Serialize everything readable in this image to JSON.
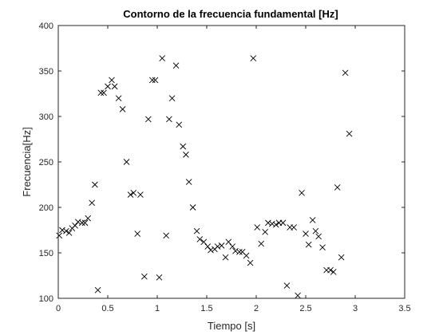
{
  "chart_data": {
    "type": "scatter",
    "title": "Contorno de la frecuencia fundamental [Hz]",
    "xlabel": "Tiempo [s]",
    "ylabel": "Frecuencia[Hz]",
    "xlim": [
      0,
      3.5
    ],
    "ylim": [
      100,
      400
    ],
    "xticks": [
      "0",
      "0.5",
      "1",
      "1.5",
      "2",
      "2.5",
      "3",
      "3.5"
    ],
    "yticks": [
      "100",
      "150",
      "200",
      "250",
      "300",
      "350",
      "400"
    ],
    "marker": "x",
    "marker_color": "#000000",
    "grid": false,
    "box": true,
    "points": [
      [
        0.01,
        169
      ],
      [
        0.04,
        175
      ],
      [
        0.08,
        174
      ],
      [
        0.11,
        172
      ],
      [
        0.14,
        177
      ],
      [
        0.17,
        180
      ],
      [
        0.2,
        184
      ],
      [
        0.24,
        183
      ],
      [
        0.27,
        183
      ],
      [
        0.3,
        188
      ],
      [
        0.34,
        205
      ],
      [
        0.37,
        225
      ],
      [
        0.4,
        109
      ],
      [
        0.43,
        326
      ],
      [
        0.46,
        326
      ],
      [
        0.5,
        333
      ],
      [
        0.54,
        340
      ],
      [
        0.57,
        333
      ],
      [
        0.61,
        320
      ],
      [
        0.65,
        308
      ],
      [
        0.69,
        250
      ],
      [
        0.73,
        214
      ],
      [
        0.76,
        216
      ],
      [
        0.8,
        171
      ],
      [
        0.83,
        214
      ],
      [
        0.87,
        124
      ],
      [
        0.91,
        297
      ],
      [
        0.95,
        340
      ],
      [
        0.98,
        340
      ],
      [
        1.02,
        123
      ],
      [
        1.05,
        364
      ],
      [
        1.09,
        169
      ],
      [
        1.12,
        297
      ],
      [
        1.15,
        320
      ],
      [
        1.19,
        356
      ],
      [
        1.22,
        291
      ],
      [
        1.26,
        267
      ],
      [
        1.29,
        258
      ],
      [
        1.32,
        228
      ],
      [
        1.36,
        200
      ],
      [
        1.4,
        174
      ],
      [
        1.43,
        165
      ],
      [
        1.47,
        162
      ],
      [
        1.51,
        157
      ],
      [
        1.54,
        153
      ],
      [
        1.58,
        154
      ],
      [
        1.61,
        157
      ],
      [
        1.65,
        158
      ],
      [
        1.69,
        145
      ],
      [
        1.72,
        162
      ],
      [
        1.76,
        157
      ],
      [
        1.79,
        152
      ],
      [
        1.83,
        151
      ],
      [
        1.86,
        151
      ],
      [
        1.9,
        147
      ],
      [
        1.94,
        139
      ],
      [
        1.97,
        364
      ],
      [
        2.01,
        178
      ],
      [
        2.05,
        160
      ],
      [
        2.09,
        173
      ],
      [
        2.12,
        183
      ],
      [
        2.16,
        182
      ],
      [
        2.2,
        181
      ],
      [
        2.23,
        183
      ],
      [
        2.27,
        183
      ],
      [
        2.31,
        114
      ],
      [
        2.34,
        178
      ],
      [
        2.38,
        178
      ],
      [
        2.42,
        103
      ],
      [
        2.46,
        216
      ],
      [
        2.5,
        171
      ],
      [
        2.53,
        159
      ],
      [
        2.57,
        186
      ],
      [
        2.6,
        174
      ],
      [
        2.63,
        168
      ],
      [
        2.67,
        156
      ],
      [
        2.71,
        131
      ],
      [
        2.75,
        131
      ],
      [
        2.78,
        129
      ],
      [
        2.82,
        222
      ],
      [
        2.86,
        145
      ],
      [
        2.9,
        348
      ],
      [
        2.94,
        281
      ]
    ]
  }
}
